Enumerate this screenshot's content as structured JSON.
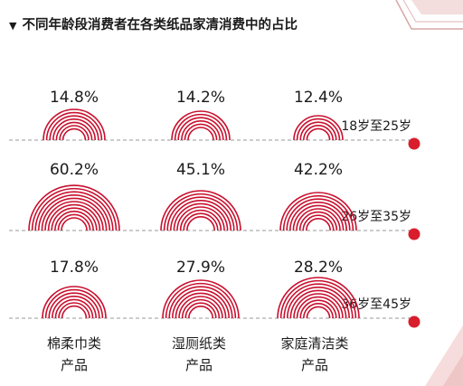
{
  "chart_data": {
    "type": "other",
    "title": "不同年龄段消费者在各类纸品家清消费中的占比",
    "categories": [
      "棉柔巾类产品",
      "湿厕纸类产品",
      "家庭清洁类产品"
    ],
    "category_lines": [
      [
        "棉柔巾类",
        "产品"
      ],
      [
        "湿厕纸类",
        "产品"
      ],
      [
        "家庭清洁类",
        "产品"
      ]
    ],
    "series": [
      {
        "name": "18岁至25岁",
        "values": [
          14.8,
          14.2,
          12.4
        ],
        "labels": [
          "14.8%",
          "14.2%",
          "12.4%"
        ]
      },
      {
        "name": "26岁至35岁",
        "values": [
          60.2,
          45.1,
          42.2
        ],
        "labels": [
          "60.2%",
          "45.1%",
          "42.2%"
        ]
      },
      {
        "name": "36岁至45岁",
        "values": [
          17.8,
          27.9,
          28.2
        ],
        "labels": [
          "17.8%",
          "27.9%",
          "28.2%"
        ]
      }
    ],
    "unit": "%",
    "colors": {
      "arc": "#c8102e",
      "dot": "#d81e2c",
      "dashed_line": "#999999",
      "decoration": "#e4b3b3"
    }
  }
}
